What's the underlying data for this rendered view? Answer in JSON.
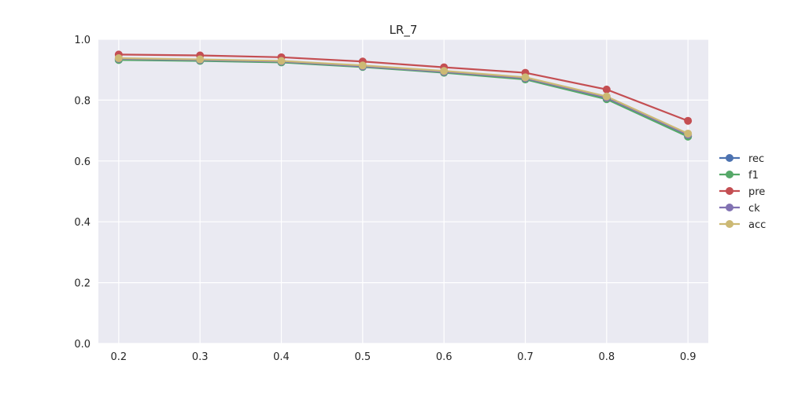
{
  "chart_data": {
    "type": "line",
    "title": "LR_7",
    "xlabel": "",
    "ylabel": "",
    "x": [
      0.2,
      0.3,
      0.4,
      0.5,
      0.6,
      0.7,
      0.8,
      0.9
    ],
    "xticks": [
      "0.2",
      "0.3",
      "0.4",
      "0.5",
      "0.6",
      "0.7",
      "0.8",
      "0.9"
    ],
    "xlim": [
      0.175,
      0.925
    ],
    "ylim": [
      0.0,
      1.0
    ],
    "yticks": [
      "0.0",
      "0.2",
      "0.4",
      "0.6",
      "0.8",
      "1.0"
    ],
    "grid": true,
    "legend_position": "right",
    "background": "#EAEAF2",
    "series": [
      {
        "name": "rec",
        "color": "#4C72B0",
        "values": [
          0.933,
          0.93,
          0.925,
          0.91,
          0.892,
          0.87,
          0.805,
          0.682
        ]
      },
      {
        "name": "f1",
        "color": "#55A868",
        "values": [
          0.932,
          0.929,
          0.924,
          0.909,
          0.89,
          0.868,
          0.803,
          0.68
        ]
      },
      {
        "name": "pre",
        "color": "#C44E52",
        "values": [
          0.95,
          0.947,
          0.941,
          0.927,
          0.908,
          0.89,
          0.835,
          0.732
        ]
      },
      {
        "name": "ck",
        "color": "#8172B2",
        "values": [
          0.936,
          0.932,
          0.927,
          0.911,
          0.893,
          0.872,
          0.808,
          0.686
        ]
      },
      {
        "name": "acc",
        "color": "#CCB974",
        "values": [
          0.938,
          0.934,
          0.929,
          0.914,
          0.896,
          0.875,
          0.812,
          0.69
        ]
      }
    ]
  }
}
